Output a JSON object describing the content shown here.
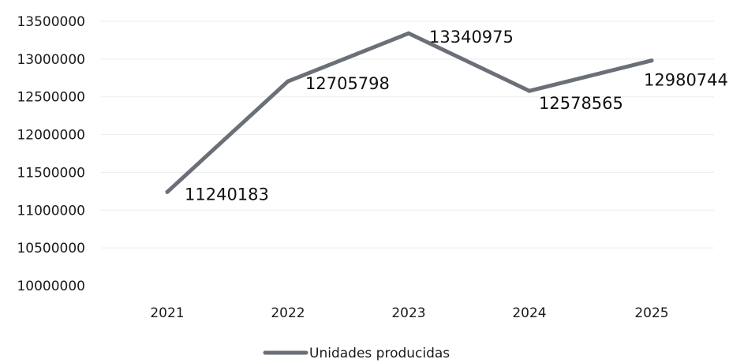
{
  "chart_data": {
    "type": "line",
    "title": "",
    "xlabel": "",
    "ylabel": "",
    "categories": [
      "2021",
      "2022",
      "2023",
      "2024",
      "2025"
    ],
    "series": [
      {
        "name": "Unidades producidas",
        "values": [
          11240183,
          12705798,
          13340975,
          12578565,
          12980744
        ],
        "color": "#6b6f78"
      }
    ],
    "ylim": [
      10000000,
      13500000
    ],
    "yticks": [
      "10000000",
      "10500000",
      "11000000",
      "11500000",
      "12000000",
      "12500000",
      "13000000",
      "13500000"
    ],
    "data_labels": [
      "11240183",
      "12705798",
      "13340975",
      "12578565",
      "12980744"
    ],
    "grid": true,
    "legend_position": "bottom"
  }
}
